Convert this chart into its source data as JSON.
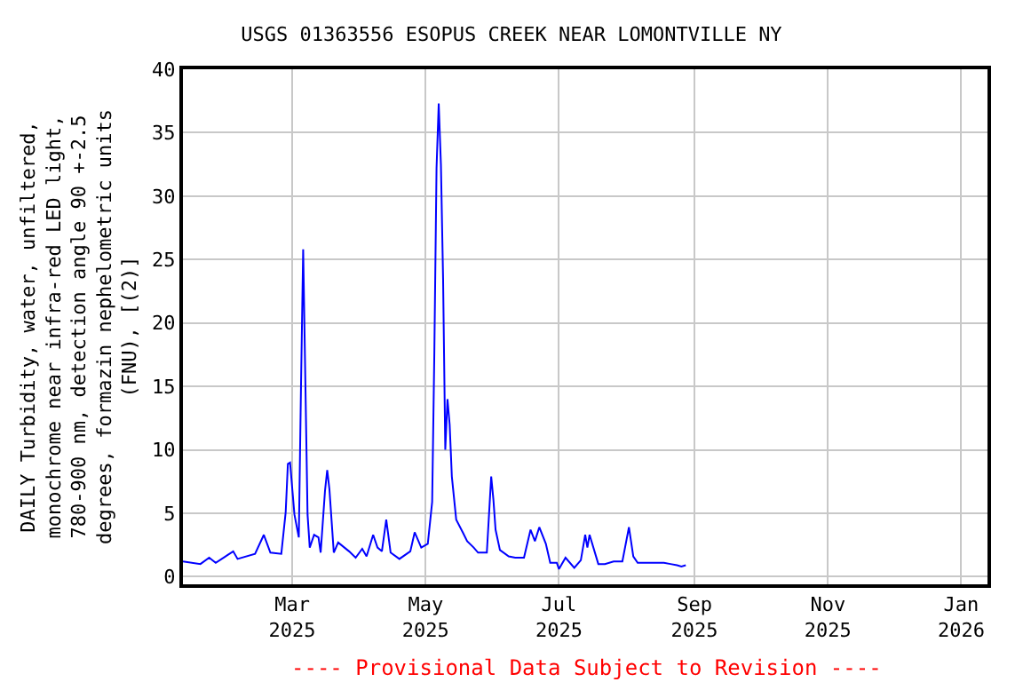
{
  "chart_data": {
    "type": "line",
    "title": "USGS 01363556 ESOPUS CREEK NEAR LOMONTVILLE NY",
    "ylabel": "DAILY Turbidity, water, unfiltered,\nmonochrome near infra-red LED light,\n780-900 nm, detection angle 90 +-2.5\ndegrees, formazin nephelometric units\n(FNU), [(2)]",
    "annotations": [
      "---- Provisional Data Subject to Revision ----"
    ],
    "x": [
      "2025-01-10",
      "2025-01-18",
      "2025-01-22",
      "2025-01-25",
      "2025-02-02",
      "2025-02-04",
      "2025-02-12",
      "2025-02-16",
      "2025-02-19",
      "2025-02-24",
      "2025-02-26",
      "2025-02-27",
      "2025-02-28",
      "2025-03-02",
      "2025-03-04",
      "2025-03-05",
      "2025-03-06",
      "2025-03-07",
      "2025-03-08",
      "2025-03-09",
      "2025-03-11",
      "2025-03-13",
      "2025-03-14",
      "2025-03-16",
      "2025-03-17",
      "2025-03-18",
      "2025-03-20",
      "2025-03-22",
      "2025-03-27",
      "2025-03-30",
      "2025-04-02",
      "2025-04-04",
      "2025-04-07",
      "2025-04-09",
      "2025-04-11",
      "2025-04-13",
      "2025-04-15",
      "2025-04-19",
      "2025-04-24",
      "2025-04-26",
      "2025-04-29",
      "2025-05-02",
      "2025-05-04",
      "2025-05-05",
      "2025-05-06",
      "2025-05-07",
      "2025-05-08",
      "2025-05-09",
      "2025-05-10",
      "2025-05-11",
      "2025-05-12",
      "2025-05-13",
      "2025-05-15",
      "2025-05-18",
      "2025-05-20",
      "2025-05-23",
      "2025-05-25",
      "2025-05-29",
      "2025-05-31",
      "2025-06-01",
      "2025-06-02",
      "2025-06-04",
      "2025-06-08",
      "2025-06-11",
      "2025-06-15",
      "2025-06-18",
      "2025-06-20",
      "2025-06-22",
      "2025-06-25",
      "2025-06-27",
      "2025-06-30",
      "2025-07-01",
      "2025-07-04",
      "2025-07-08",
      "2025-07-11",
      "2025-07-13",
      "2025-07-14",
      "2025-07-15",
      "2025-07-19",
      "2025-07-22",
      "2025-07-26",
      "2025-07-30",
      "2025-08-02",
      "2025-08-04",
      "2025-08-06",
      "2025-08-18",
      "2025-08-21",
      "2025-08-24",
      "2025-08-26",
      "2025-08-28"
    ],
    "series": [
      {
        "color": "#0000ff",
        "values": [
          1.2,
          1.0,
          1.5,
          1.1,
          2.0,
          1.4,
          1.8,
          3.3,
          1.9,
          1.8,
          5.1,
          8.9,
          9.0,
          4.9,
          3.1,
          14.9,
          25.8,
          15.4,
          4.9,
          2.3,
          3.3,
          3.1,
          1.9,
          6.8,
          8.4,
          6.9,
          1.9,
          2.7,
          2.0,
          1.5,
          2.2,
          1.6,
          3.3,
          2.3,
          2.0,
          4.5,
          1.9,
          1.4,
          2.0,
          3.5,
          2.3,
          2.6,
          5.9,
          17.7,
          32.2,
          37.3,
          32.5,
          23.4,
          10.0,
          14.0,
          12.0,
          7.9,
          4.5,
          3.5,
          2.8,
          2.3,
          1.9,
          1.9,
          7.9,
          6.1,
          3.7,
          2.1,
          1.6,
          1.5,
          1.5,
          3.7,
          2.8,
          3.9,
          2.6,
          1.1,
          1.1,
          0.6,
          1.5,
          0.7,
          1.3,
          3.3,
          2.3,
          3.3,
          1.0,
          1.0,
          1.2,
          1.2,
          3.9,
          1.6,
          1.1,
          1.1,
          1.0,
          0.9,
          0.8,
          0.9
        ]
      }
    ],
    "xlim": [
      "2025-01-10",
      "2026-01-13"
    ],
    "xticks": [
      {
        "value": "2025-03-01",
        "label": "Mar\n2025"
      },
      {
        "value": "2025-05-01",
        "label": "May\n2025"
      },
      {
        "value": "2025-07-01",
        "label": "Jul\n2025"
      },
      {
        "value": "2025-09-01",
        "label": "Sep\n2025"
      },
      {
        "value": "2025-11-01",
        "label": "Nov\n2025"
      },
      {
        "value": "2026-01-01",
        "label": "Jan\n2026"
      }
    ],
    "ylim": [
      -0.6,
      40
    ],
    "yticks": [
      0,
      5,
      10,
      15,
      20,
      25,
      30,
      35,
      40
    ],
    "grid": true,
    "line_style": "solid",
    "marker": "none"
  }
}
